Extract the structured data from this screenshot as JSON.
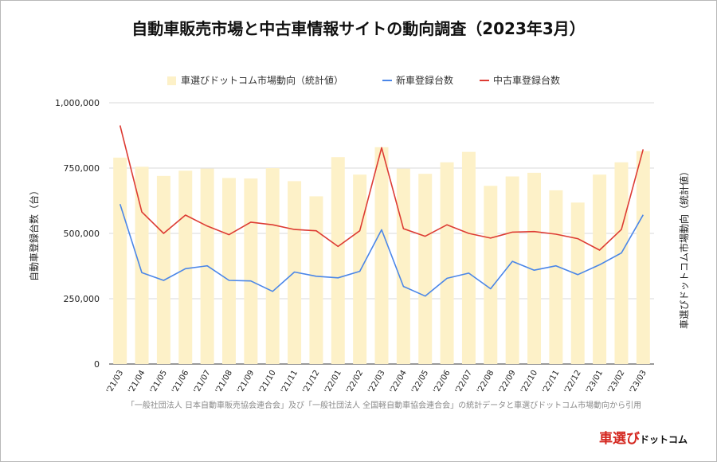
{
  "chart_data": {
    "type": "bar+line",
    "title": "自動車販売市場と中古車情報サイトの動向調査（2023年3月）",
    "categories": [
      "'21/03",
      "'21/04",
      "'21/05",
      "'21/06",
      "'21/07",
      "'21/08",
      "'21/09",
      "'21/10",
      "'21/11",
      "'21/12",
      "'22/01",
      "'22/02",
      "'22/03",
      "'22/04",
      "'22/05",
      "'22/06",
      "'22/07",
      "'22/08",
      "'22/09",
      "'22/10",
      "'22/11",
      "'22/12",
      "'23/01",
      "'23/02",
      "'23/03"
    ],
    "ylabel_left": "自動車登録台数（台）",
    "ylabel_right": "車選びドットコム市場動向（統計値）",
    "ylim": [
      0,
      1000000
    ],
    "yticks": [
      "0",
      "250,000",
      "500,000",
      "750,000",
      "1,000,000"
    ],
    "legend": [
      {
        "name": "車選びドットコム市場動向（統計値）",
        "color": "#fdf1c8",
        "kind": "bar"
      },
      {
        "name": "新車登録台数",
        "color": "#4a86e8",
        "kind": "line"
      },
      {
        "name": "中古車登録台数",
        "color": "#dd3b33",
        "kind": "line"
      }
    ],
    "series": [
      {
        "name": "車選びドットコム市場動向（統計値）",
        "type": "bar",
        "axis": "right",
        "color": "#fdf1c8",
        "values": [
          790000,
          755000,
          720000,
          740000,
          748000,
          712000,
          710000,
          750000,
          700000,
          642000,
          792000,
          725000,
          830000,
          748000,
          728000,
          772000,
          812000,
          682000,
          718000,
          732000,
          665000,
          618000,
          725000,
          772000,
          815000
        ]
      },
      {
        "name": "新車登録台数",
        "type": "line",
        "axis": "left",
        "color": "#4a86e8",
        "values": [
          612000,
          350000,
          320000,
          365000,
          376000,
          320000,
          318000,
          278000,
          352000,
          336000,
          330000,
          355000,
          514000,
          297000,
          260000,
          328000,
          348000,
          288000,
          393000,
          359000,
          376000,
          342000,
          380000,
          425000,
          571000
        ]
      },
      {
        "name": "中古車登録台数",
        "type": "line",
        "axis": "left",
        "color": "#dd3b33",
        "values": [
          913000,
          582000,
          500000,
          570000,
          528000,
          495000,
          543000,
          533000,
          515000,
          510000,
          450000,
          510000,
          828000,
          518000,
          489000,
          533000,
          500000,
          482000,
          505000,
          507000,
          497000,
          480000,
          436000,
          515000,
          822000
        ]
      }
    ]
  },
  "source_note": "「一般社団法人 日本自動車販売協会連合会」及び「一般社団法人 全国軽自動車協会連合会」の統計データと車選びドットコム市場動向から引用",
  "logo": {
    "main": "車選び",
    "sub": "ドットコム"
  }
}
